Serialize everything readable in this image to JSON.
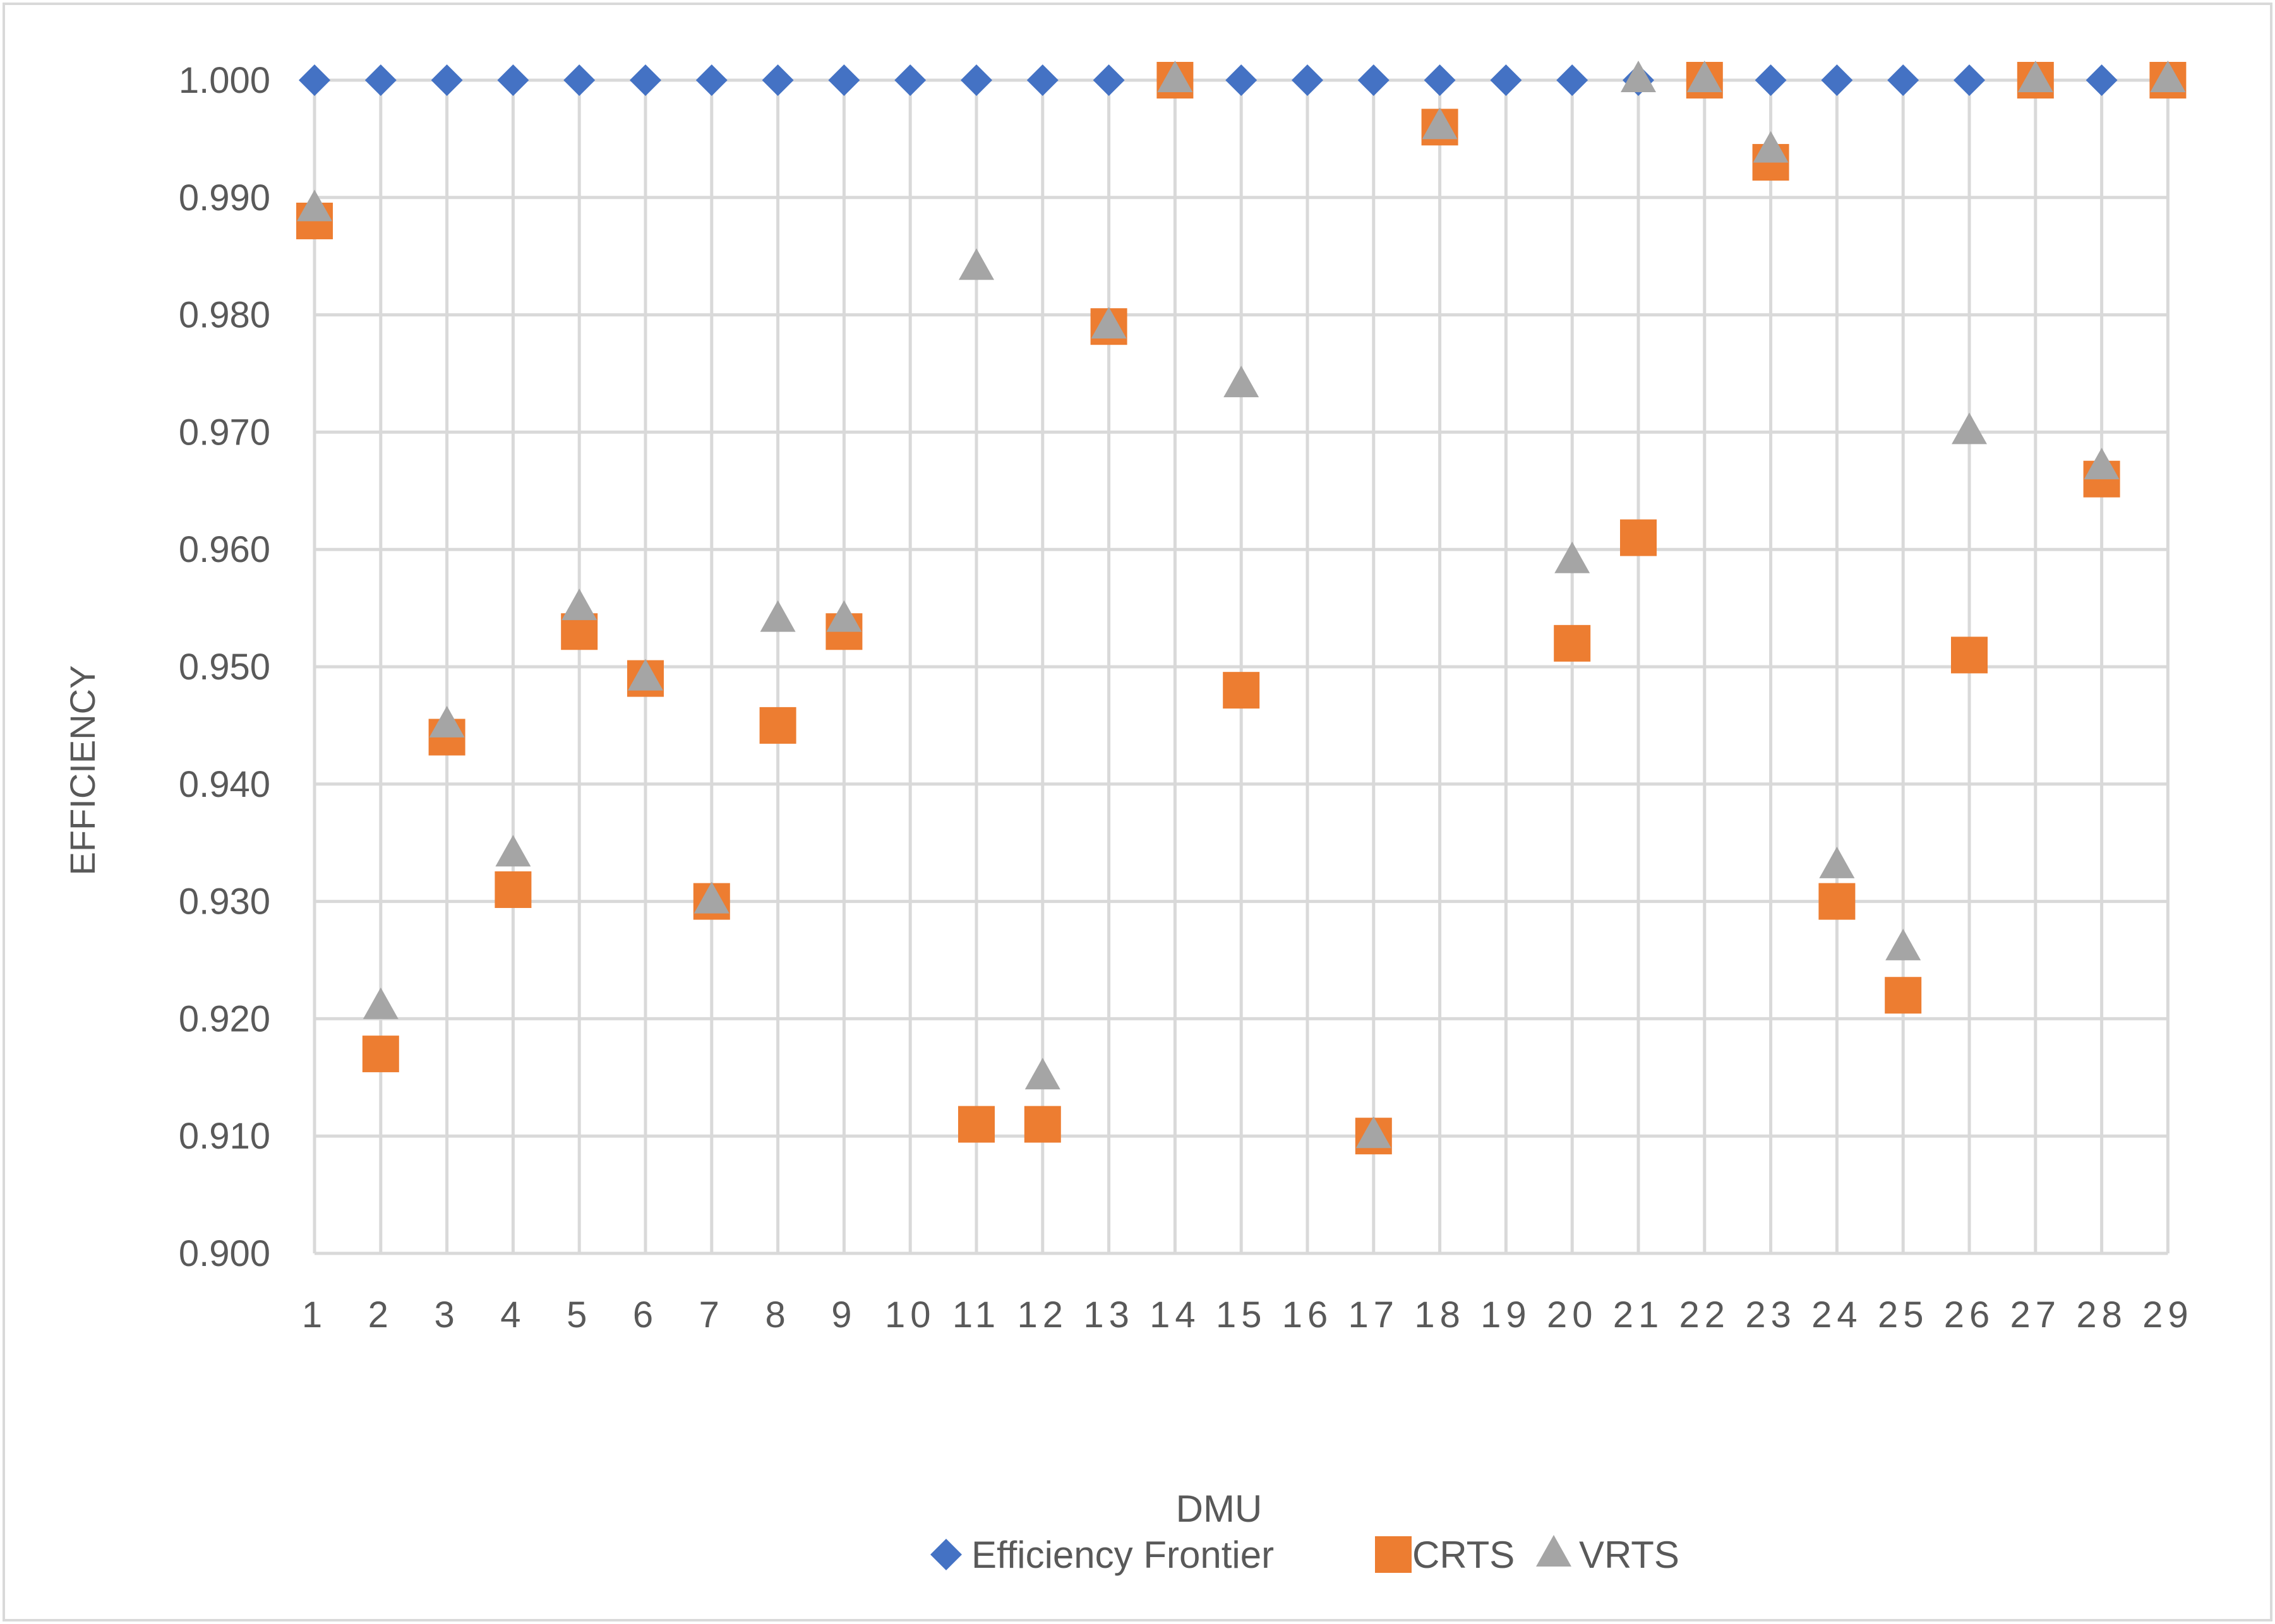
{
  "chart_data": {
    "type": "scatter",
    "xlabel": "DMU",
    "ylabel": "EFFICIENCY",
    "x": [
      1,
      2,
      3,
      4,
      5,
      6,
      7,
      8,
      9,
      10,
      11,
      12,
      13,
      14,
      15,
      16,
      17,
      18,
      19,
      20,
      21,
      22,
      23,
      24,
      25,
      26,
      27,
      28,
      29
    ],
    "x_tick_labels": [
      "1",
      "2",
      "3",
      "4",
      "5",
      "6",
      "7",
      "8",
      "9",
      "10",
      "11",
      "12",
      "13",
      "14",
      "15",
      "16",
      "17",
      "18",
      "19",
      "20",
      "21",
      "22",
      "23",
      "24",
      "25",
      "26",
      "27",
      "28",
      "29"
    ],
    "ylim": [
      0.9,
      1.0
    ],
    "y_tick_values": [
      0.9,
      0.91,
      0.92,
      0.93,
      0.94,
      0.95,
      0.96,
      0.97,
      0.98,
      0.99,
      1.0
    ],
    "y_tick_labels": [
      "0.900",
      "0.910",
      "0.920",
      "0.930",
      "0.940",
      "0.950",
      "0.960",
      "0.970",
      "0.980",
      "0.990",
      "1.000"
    ],
    "grid": true,
    "legend_position": "bottom",
    "series": [
      {
        "name": "Efficiency Frontier",
        "marker": "diamond",
        "color": "#4472C4",
        "values": [
          1.0,
          1.0,
          1.0,
          1.0,
          1.0,
          1.0,
          1.0,
          1.0,
          1.0,
          1.0,
          1.0,
          1.0,
          1.0,
          1.0,
          1.0,
          1.0,
          1.0,
          1.0,
          1.0,
          1.0,
          1.0,
          1.0,
          1.0,
          1.0,
          1.0,
          1.0,
          1.0,
          1.0,
          1.0
        ]
      },
      {
        "name": "CRTS",
        "marker": "square",
        "color": "#ED7D31",
        "values": [
          0.988,
          0.917,
          0.944,
          0.931,
          0.953,
          0.949,
          0.93,
          0.945,
          0.953,
          null,
          0.911,
          0.911,
          0.979,
          1.0,
          0.948,
          null,
          0.91,
          0.996,
          null,
          0.952,
          0.961,
          1.0,
          0.993,
          0.93,
          0.922,
          0.951,
          1.0,
          0.966,
          1.0
        ]
      },
      {
        "name": "VRTS",
        "marker": "triangle",
        "color": "#A5A5A5",
        "values": [
          0.989,
          0.921,
          0.945,
          0.934,
          0.955,
          0.949,
          0.93,
          0.954,
          0.954,
          null,
          0.984,
          0.915,
          0.979,
          1.0,
          0.974,
          null,
          0.91,
          0.996,
          null,
          0.959,
          1.0,
          1.0,
          0.994,
          0.933,
          0.926,
          0.97,
          1.0,
          0.967,
          1.0
        ]
      }
    ]
  }
}
